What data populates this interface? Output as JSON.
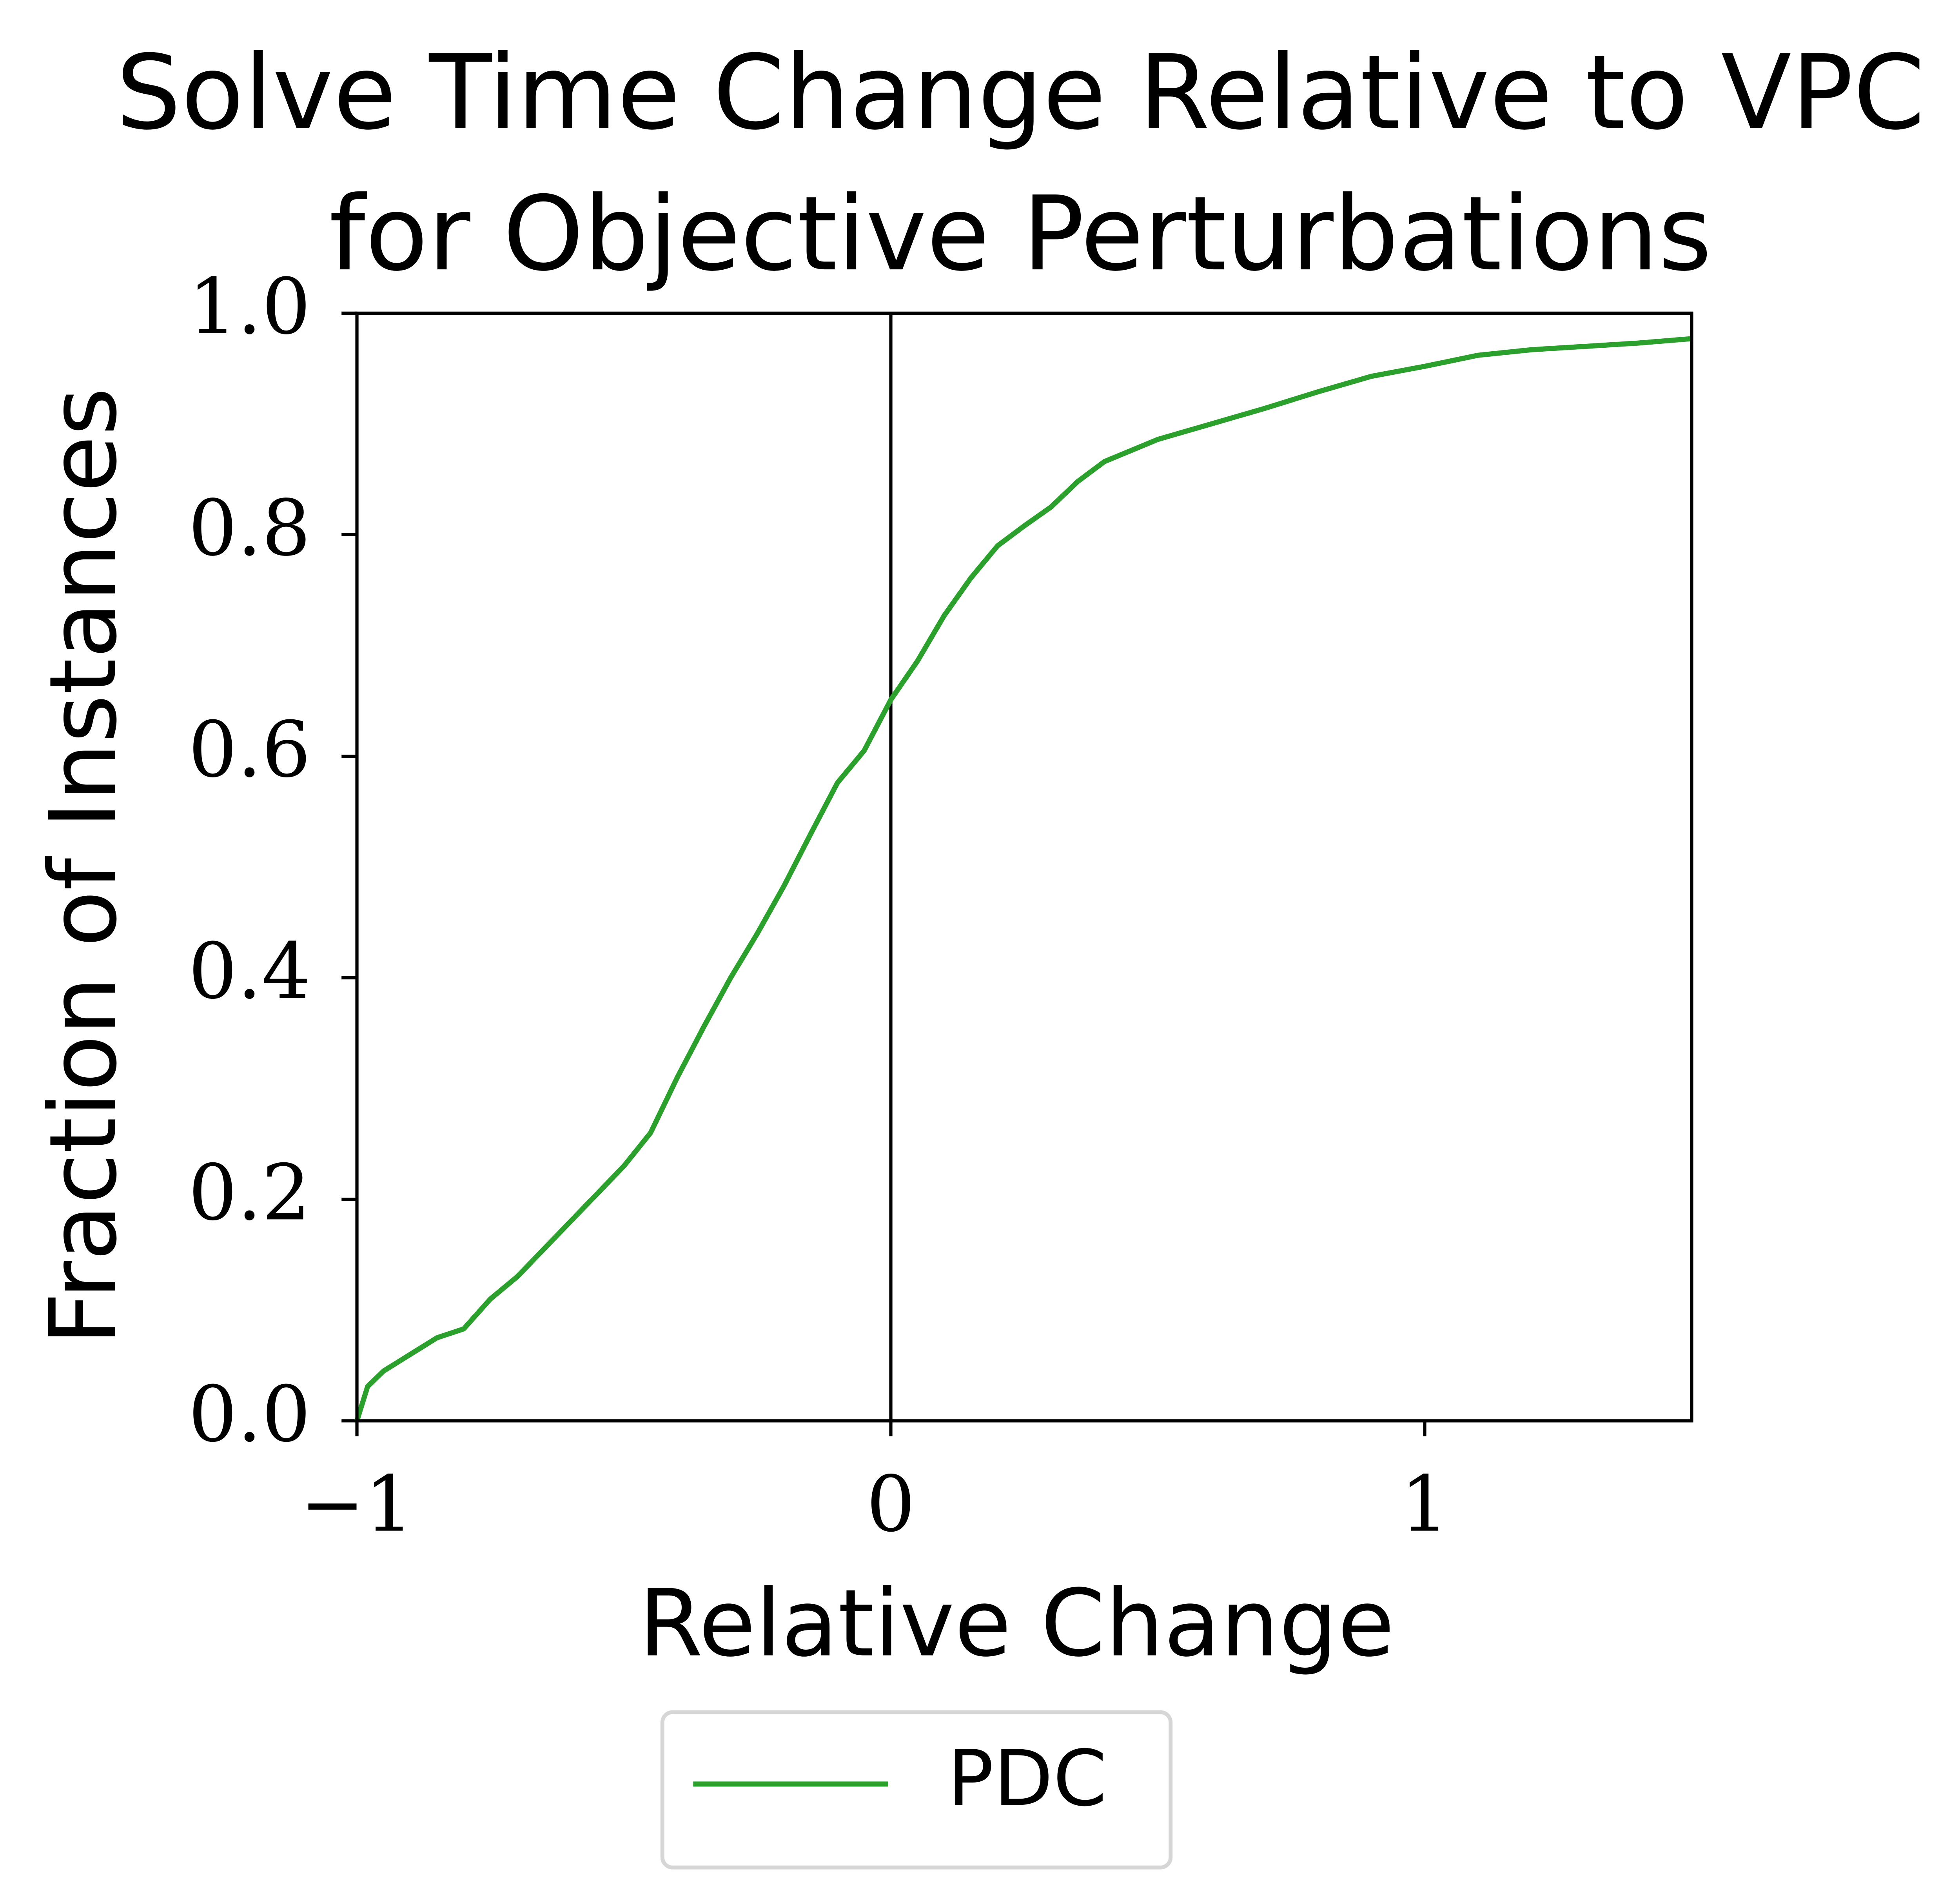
{
  "chart_data": {
    "type": "line",
    "title": "Solve Time Change Relative to VPC",
    "subtitle": "for Objective Perturbations",
    "x_label": "Relative Change",
    "y_label": "Fraction of Instances",
    "x": [
      -1,
      -0.98,
      -0.95,
      -0.9,
      -0.85,
      -0.8,
      -0.75,
      -0.7,
      -0.65,
      -0.6,
      -0.55,
      -0.5,
      -0.45,
      -0.4,
      -0.35,
      -0.3,
      -0.25,
      -0.2,
      -0.15,
      -0.1,
      -0.05,
      0,
      0.05,
      0.1,
      0.15,
      0.2,
      0.25,
      0.3,
      0.35,
      0.4,
      0.5,
      0.6,
      0.7,
      0.8,
      0.9,
      1.0,
      1.1,
      1.2,
      1.3,
      1.4,
      1.5
    ],
    "series": [
      {
        "name": "PDC",
        "color": "#2ca02c",
        "values": [
          0.0,
          0.031,
          0.045,
          0.06,
          0.075,
          0.083,
          0.11,
          0.13,
          0.155,
          0.18,
          0.205,
          0.23,
          0.26,
          0.31,
          0.356,
          0.4,
          0.44,
          0.483,
          0.53,
          0.576,
          0.605,
          0.651,
          0.686,
          0.727,
          0.761,
          0.79,
          0.808,
          0.825,
          0.848,
          0.866,
          0.886,
          0.9,
          0.914,
          0.929,
          0.943,
          0.952,
          0.962,
          0.967,
          0.97,
          0.973,
          0.977
        ]
      }
    ],
    "xlim": [
      -1,
      1.5
    ],
    "ylim": [
      0,
      1
    ],
    "xticks": [
      {
        "value": -1,
        "label": "−1"
      },
      0,
      1
    ],
    "yticks": [
      {
        "value": 0,
        "label": "0.0"
      },
      {
        "value": 0.2,
        "label": "0.2"
      },
      {
        "value": 0.4,
        "label": "0.4"
      },
      {
        "value": 0.6,
        "label": "0.6"
      },
      {
        "value": 0.8,
        "label": "0.8"
      },
      {
        "value": 1,
        "label": "1.0"
      }
    ],
    "vlines": [
      0
    ],
    "grid": false,
    "legend": "below"
  }
}
